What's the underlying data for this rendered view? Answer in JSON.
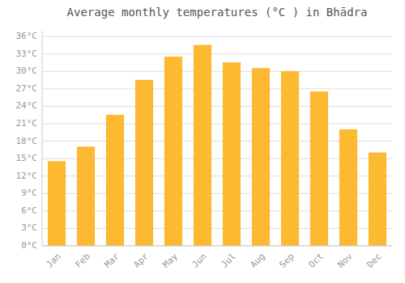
{
  "chart_data": {
    "type": "bar",
    "title": "Average monthly temperatures (°C ) in Bhādra",
    "categories": [
      "Jan",
      "Feb",
      "Mar",
      "Apr",
      "May",
      "Jun",
      "Jul",
      "Aug",
      "Sep",
      "Oct",
      "Nov",
      "Dec"
    ],
    "values": [
      14.5,
      17.0,
      22.5,
      28.5,
      32.5,
      34.5,
      31.5,
      30.5,
      30.0,
      26.5,
      20.0,
      16.0
    ],
    "color": "#FDB931",
    "ylim": [
      0,
      37
    ],
    "yticks": [
      {
        "value": 0,
        "label": "0°C"
      },
      {
        "value": 3,
        "label": "3°C"
      },
      {
        "value": 6,
        "label": "6°C"
      },
      {
        "value": 9,
        "label": "9°C"
      },
      {
        "value": 12,
        "label": "12°C"
      },
      {
        "value": 15,
        "label": "15°C"
      },
      {
        "value": 18,
        "label": "18°C"
      },
      {
        "value": 21,
        "label": "21°C"
      },
      {
        "value": 24,
        "label": "24°C"
      },
      {
        "value": 27,
        "label": "27°C"
      },
      {
        "value": 30,
        "label": "30°C"
      },
      {
        "value": 33,
        "label": "33°C"
      },
      {
        "value": 36,
        "label": "36°C"
      }
    ],
    "grid": true
  }
}
